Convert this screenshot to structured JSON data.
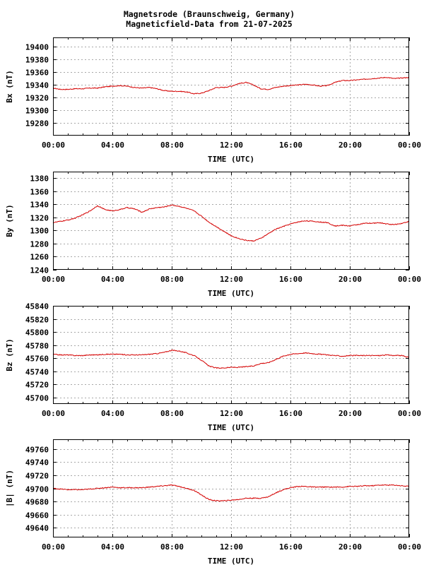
{
  "header": {
    "title_line1": "Magnetsrode (Braunschweig, Germany)",
    "title_line2": "Magneticfield-Data from 21-07-2025"
  },
  "colors": {
    "series": "#d40000",
    "grid": "#a8a8a8",
    "frame": "#000000"
  },
  "chart_data": [
    {
      "type": "line",
      "ylabel": "Bx (nT)",
      "xlabel": "TIME (UTC)",
      "xlim": [
        0,
        24
      ],
      "xticks": [
        0,
        4,
        8,
        12,
        16,
        20,
        24
      ],
      "xtick_labels": [
        "00:00",
        "04:00",
        "08:00",
        "12:00",
        "16:00",
        "20:00",
        "00:00"
      ],
      "ylim": [
        19260,
        19415
      ],
      "yticks": [
        19280,
        19300,
        19320,
        19340,
        19360,
        19380,
        19400
      ],
      "series": [
        {
          "x": [
            0,
            0.5,
            1,
            1.5,
            2,
            2.5,
            3,
            3.5,
            4,
            4.5,
            5,
            5.5,
            6,
            6.5,
            7,
            7.5,
            8,
            8.5,
            9,
            9.5,
            10,
            10.5,
            11,
            11.5,
            12,
            12.5,
            13,
            13.5,
            14,
            14.5,
            15,
            15.5,
            16,
            16.5,
            17,
            17.5,
            18,
            18.5,
            19,
            19.5,
            20,
            20.5,
            21,
            21.5,
            22,
            22.5,
            23,
            23.5,
            24
          ],
          "values": [
            19335,
            19333,
            19333,
            19334,
            19334,
            19335,
            19335,
            19337,
            19338,
            19339,
            19338,
            19336,
            19335,
            19336,
            19334,
            19331,
            19330,
            19330,
            19329,
            19326,
            19327,
            19331,
            19336,
            19336,
            19338,
            19342,
            19344,
            19340,
            19334,
            19333,
            19336,
            19338,
            19339,
            19340,
            19341,
            19340,
            19338,
            19339,
            19344,
            19347,
            19347,
            19348,
            19349,
            19350,
            19351,
            19352,
            19350,
            19351,
            19352
          ]
        }
      ]
    },
    {
      "type": "line",
      "ylabel": "By (nT)",
      "xlabel": "TIME (UTC)",
      "xlim": [
        0,
        24
      ],
      "xticks": [
        0,
        4,
        8,
        12,
        16,
        20,
        24
      ],
      "xtick_labels": [
        "00:00",
        "04:00",
        "08:00",
        "12:00",
        "16:00",
        "20:00",
        "00:00"
      ],
      "ylim": [
        1240,
        1390
      ],
      "yticks": [
        1240,
        1260,
        1280,
        1300,
        1320,
        1340,
        1360,
        1380
      ],
      "series": [
        {
          "x": [
            0,
            0.5,
            1,
            1.5,
            2,
            2.5,
            3,
            3.5,
            4,
            4.5,
            5,
            5.5,
            6,
            6.5,
            7,
            7.5,
            8,
            8.5,
            9,
            9.5,
            10,
            10.5,
            11,
            11.5,
            12,
            12.5,
            13,
            13.5,
            14,
            14.5,
            15,
            15.5,
            16,
            16.5,
            17,
            17.5,
            18,
            18.5,
            19,
            19.5,
            20,
            20.5,
            21,
            21.5,
            22,
            22.5,
            23,
            23.5,
            24
          ],
          "values": [
            1312,
            1314,
            1316,
            1319,
            1324,
            1330,
            1338,
            1332,
            1330,
            1332,
            1335,
            1333,
            1328,
            1333,
            1335,
            1336,
            1339,
            1337,
            1334,
            1330,
            1322,
            1313,
            1306,
            1299,
            1292,
            1288,
            1285,
            1284,
            1288,
            1295,
            1302,
            1306,
            1310,
            1313,
            1315,
            1314,
            1313,
            1312,
            1307,
            1308,
            1307,
            1309,
            1311,
            1311,
            1312,
            1310,
            1309,
            1311,
            1314
          ]
        }
      ]
    },
    {
      "type": "line",
      "ylabel": "Bz (nT)",
      "xlabel": "TIME (UTC)",
      "xlim": [
        0,
        24
      ],
      "xticks": [
        0,
        4,
        8,
        12,
        16,
        20,
        24
      ],
      "xtick_labels": [
        "00:00",
        "04:00",
        "08:00",
        "12:00",
        "16:00",
        "20:00",
        "00:00"
      ],
      "ylim": [
        45690,
        45840
      ],
      "yticks": [
        45700,
        45720,
        45740,
        45760,
        45780,
        45800,
        45820,
        45840
      ],
      "series": [
        {
          "x": [
            0,
            0.5,
            1,
            1.5,
            2,
            2.5,
            3,
            3.5,
            4,
            4.5,
            5,
            5.5,
            6,
            6.5,
            7,
            7.5,
            8,
            8.5,
            9,
            9.5,
            10,
            10.5,
            11,
            11.5,
            12,
            12.5,
            13,
            13.5,
            14,
            14.5,
            15,
            15.5,
            16,
            16.5,
            17,
            17.5,
            18,
            18.5,
            19,
            19.5,
            20,
            20.5,
            21,
            21.5,
            22,
            22.5,
            23,
            23.5,
            24
          ],
          "values": [
            45766,
            45765,
            45765,
            45764,
            45764,
            45765,
            45765,
            45766,
            45766,
            45766,
            45765,
            45765,
            45765,
            45766,
            45767,
            45769,
            45772,
            45771,
            45768,
            45764,
            45757,
            45748,
            45745,
            45745,
            45746,
            45746,
            45747,
            45748,
            45752,
            45753,
            45758,
            45763,
            45766,
            45767,
            45768,
            45767,
            45766,
            45765,
            45764,
            45763,
            45764,
            45764,
            45764,
            45764,
            45764,
            45765,
            45764,
            45764,
            45761
          ]
        }
      ]
    },
    {
      "type": "line",
      "ylabel": "|B| (nT)",
      "xlabel": "TIME (UTC)",
      "xlim": [
        0,
        24
      ],
      "xticks": [
        0,
        4,
        8,
        12,
        16,
        20,
        24
      ],
      "xtick_labels": [
        "00:00",
        "04:00",
        "08:00",
        "12:00",
        "16:00",
        "20:00",
        "00:00"
      ],
      "ylim": [
        49625,
        49775
      ],
      "yticks": [
        49640,
        49660,
        49680,
        49700,
        49720,
        49740,
        49760
      ],
      "series": [
        {
          "x": [
            0,
            0.5,
            1,
            1.5,
            2,
            2.5,
            3,
            3.5,
            4,
            4.5,
            5,
            5.5,
            6,
            6.5,
            7,
            7.5,
            8,
            8.5,
            9,
            9.5,
            10,
            10.5,
            11,
            11.5,
            12,
            12.5,
            13,
            13.5,
            14,
            14.5,
            15,
            15.5,
            16,
            16.5,
            17,
            17.5,
            18,
            18.5,
            19,
            19.5,
            20,
            20.5,
            21,
            21.5,
            22,
            22.5,
            23,
            23.5,
            24
          ],
          "values": [
            49700,
            49699,
            49698,
            49698,
            49698,
            49699,
            49700,
            49701,
            49702,
            49701,
            49701,
            49701,
            49701,
            49702,
            49703,
            49704,
            49705,
            49703,
            49700,
            49697,
            49690,
            49683,
            49681,
            49681,
            49682,
            49683,
            49685,
            49685,
            49685,
            49687,
            49693,
            49698,
            49701,
            49703,
            49703,
            49702,
            49702,
            49702,
            49702,
            49702,
            49703,
            49703,
            49704,
            49704,
            49705,
            49705,
            49705,
            49704,
            49703
          ]
        }
      ]
    }
  ]
}
